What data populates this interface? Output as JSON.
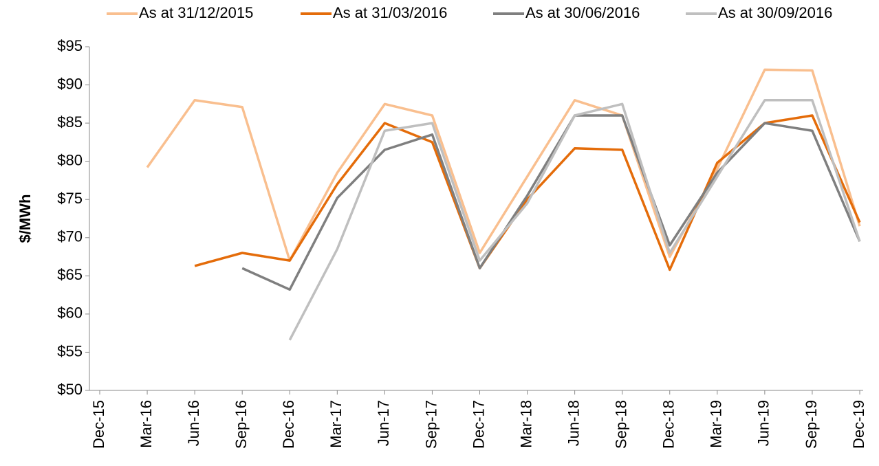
{
  "chart_data": {
    "type": "line",
    "ylabel": "$/MWh",
    "categories": [
      "Dec-15",
      "Mar-16",
      "Jun-16",
      "Sep-16",
      "Dec-16",
      "Mar-17",
      "Jun-17",
      "Sep-17",
      "Dec-17",
      "Mar-18",
      "Jun-18",
      "Sep-18",
      "Dec-18",
      "Mar-19",
      "Jun-19",
      "Sep-19",
      "Dec-19"
    ],
    "series": [
      {
        "name": "As at 31/12/2015",
        "color": "#f9bf8f",
        "values": [
          null,
          79.2,
          88,
          87.1,
          67,
          78.5,
          87.5,
          86,
          68,
          78,
          88,
          86,
          67.5,
          79,
          92,
          91.9,
          71.5
        ]
      },
      {
        "name": "As at 31/03/2016",
        "color": "#e46c0a",
        "values": [
          null,
          null,
          66.3,
          68,
          67,
          77,
          85,
          82.5,
          66,
          75,
          81.7,
          81.5,
          65.8,
          79.8,
          85,
          86,
          72
        ]
      },
      {
        "name": "As at 30/06/2016",
        "color": "#7f7f7f",
        "values": [
          null,
          null,
          null,
          66,
          63.2,
          75.2,
          81.5,
          83.5,
          66,
          75.5,
          86,
          86,
          69,
          78.5,
          85,
          84,
          69.5
        ]
      },
      {
        "name": "As at 30/09/2016",
        "color": "#bfbfbf",
        "values": [
          null,
          null,
          null,
          null,
          56.6,
          68.5,
          84,
          85,
          67,
          74.5,
          86,
          87.5,
          68,
          78,
          88,
          88,
          69.5
        ]
      }
    ],
    "ylim": [
      50,
      95
    ],
    "yticks": [
      {
        "value": 50,
        "label": "$50"
      },
      {
        "value": 55,
        "label": "$55"
      },
      {
        "value": 60,
        "label": "$60"
      },
      {
        "value": 65,
        "label": "$65"
      },
      {
        "value": 70,
        "label": "$70"
      },
      {
        "value": 75,
        "label": "$75"
      },
      {
        "value": 80,
        "label": "$80"
      },
      {
        "value": 85,
        "label": "$85"
      },
      {
        "value": 90,
        "label": "$90"
      },
      {
        "value": 95,
        "label": "$95"
      }
    ],
    "legend": "top"
  }
}
